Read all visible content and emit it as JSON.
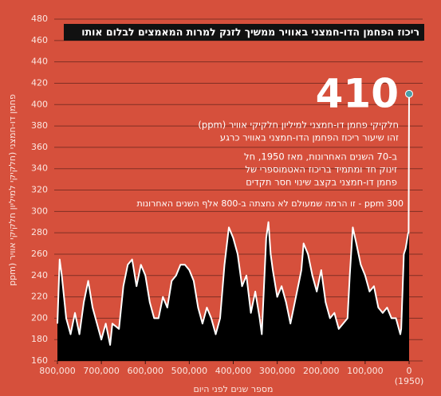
{
  "chart_data": {
    "type": "area",
    "title": "ריכוז הפחמן הדו-חמצני באוויר ממשיך לזנק למרות המאמצים לבלום אותו",
    "y_label": "פחמן דו-חמצני (חלקיקי למיליון חלקיקי אוויר (ppm",
    "x_label": "מספר שנים לפני היום",
    "x_note": "(1950)",
    "annotations": {
      "big_value": "410",
      "lines": [
        "חלקיקי פחמן דו-חמצני למיליון חלקיקי אוויר (ppm)",
        "זהו שיעור ריכוז הפחמן הדו-חמצני באוויר כרגע"
      ],
      "paragraph": [
        "ב-70 השנים האחרונות, מאז 1950, חל",
        "זינוק חד ומתמיד בריכוז האטמוספרי של",
        "פחמן דו-חמצני בקצב שינוי חסר תקדים"
      ],
      "threshold": "300 ppm - זו הרמה שמעולם לא נחצתה ב-800 אלף השנים האחרונות"
    },
    "x": [
      800000,
      795000,
      790000,
      780000,
      770000,
      760000,
      750000,
      740000,
      730000,
      720000,
      710000,
      700000,
      690000,
      680000,
      675000,
      660000,
      650000,
      640000,
      630000,
      620000,
      610000,
      600000,
      590000,
      580000,
      570000,
      560000,
      550000,
      540000,
      530000,
      520000,
      510000,
      500000,
      490000,
      480000,
      470000,
      460000,
      450000,
      440000,
      430000,
      420000,
      410000,
      400000,
      390000,
      380000,
      370000,
      360000,
      350000,
      340000,
      335000,
      325000,
      320000,
      315000,
      310000,
      300000,
      290000,
      280000,
      270000,
      250000,
      245000,
      240000,
      230000,
      220000,
      210000,
      200000,
      190000,
      180000,
      170000,
      160000,
      150000,
      140000,
      135000,
      128000,
      120000,
      110000,
      100000,
      90000,
      80000,
      70000,
      60000,
      50000,
      40000,
      30000,
      20000,
      18000,
      12000,
      8000,
      2000,
      1000,
      0
    ],
    "series": [
      {
        "name": "CO2",
        "color": "#ffffff",
        "fill": "#000000",
        "marker_color": "#4a9fa8",
        "values": [
          195,
          255,
          240,
          200,
          185,
          205,
          185,
          215,
          235,
          210,
          195,
          180,
          195,
          175,
          195,
          190,
          230,
          250,
          255,
          230,
          250,
          240,
          215,
          200,
          200,
          220,
          210,
          235,
          240,
          250,
          250,
          245,
          235,
          210,
          195,
          210,
          200,
          185,
          200,
          250,
          285,
          275,
          260,
          230,
          240,
          205,
          225,
          200,
          185,
          275,
          290,
          260,
          245,
          220,
          230,
          215,
          195,
          235,
          245,
          270,
          260,
          240,
          225,
          245,
          215,
          200,
          205,
          190,
          195,
          200,
          240,
          285,
          270,
          250,
          240,
          225,
          230,
          210,
          205,
          210,
          200,
          200,
          185,
          190,
          260,
          265,
          280,
          280,
          410
        ]
      }
    ],
    "xlim": [
      800000,
      0
    ],
    "ylim": [
      160,
      480
    ],
    "xticks": [
      {
        "value": 800000,
        "label": "800,000"
      },
      {
        "value": 700000,
        "label": "700,000"
      },
      {
        "value": 600000,
        "label": "600,000"
      },
      {
        "value": 500000,
        "label": "500,000"
      },
      {
        "value": 400000,
        "label": "400,000"
      },
      {
        "value": 300000,
        "label": "300,000"
      },
      {
        "value": 200000,
        "label": "200,000"
      },
      {
        "value": 100000,
        "label": "100,000"
      },
      0
    ],
    "yticks": [
      160,
      180,
      200,
      220,
      240,
      260,
      280,
      300,
      320,
      340,
      360,
      380,
      400,
      420,
      440,
      460,
      480
    ],
    "grid": true
  }
}
